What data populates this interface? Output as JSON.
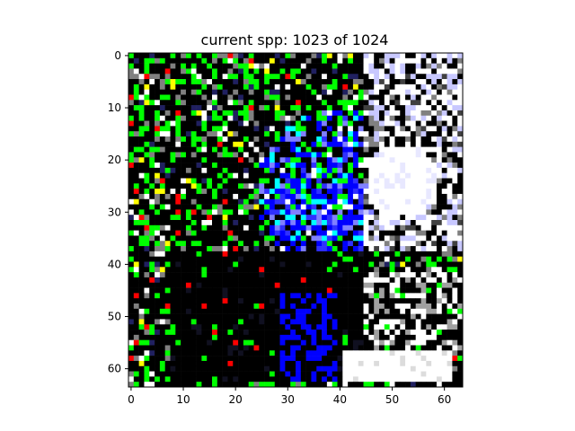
{
  "chart_data": {
    "type": "heatmap",
    "title": "current spp: 1023 of 1024",
    "xlabel": "",
    "ylabel": "",
    "image_size": [
      64,
      64
    ],
    "xlim": [
      -0.5,
      63.5
    ],
    "ylim": [
      63.5,
      -0.5
    ],
    "x_ticks": [
      0,
      10,
      20,
      30,
      40,
      50,
      60
    ],
    "y_ticks": [
      0,
      10,
      20,
      30,
      40,
      50,
      60
    ],
    "x_tick_labels": [
      "0",
      "10",
      "20",
      "30",
      "40",
      "50",
      "60"
    ],
    "y_tick_labels": [
      "0",
      "10",
      "20",
      "30",
      "40",
      "50",
      "60"
    ],
    "grid": false,
    "colors": {
      "background": "#000000",
      "green_noise": "#00ff00",
      "red_noise": "#ff0000",
      "blue_noise": "#0000ff",
      "white": "#ffffff",
      "gray": "#808080"
    },
    "regions": {
      "bright_light": {
        "center": [
          52,
          24
        ],
        "radius": 7
      },
      "blue_glow": {
        "center": [
          40,
          26
        ],
        "radius": 16
      },
      "bright_bar": {
        "x": [
          41,
          61
        ],
        "y": [
          57,
          62
        ]
      },
      "dark_bar": {
        "x": [
          8,
          55
        ],
        "y": [
          38,
          61
        ]
      }
    }
  }
}
